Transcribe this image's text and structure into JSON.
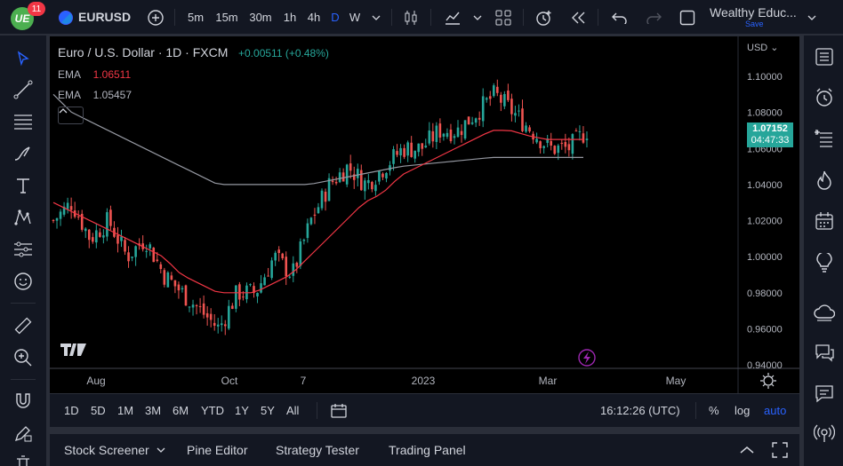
{
  "topbar": {
    "notifications": "11",
    "symbol": "EURUSD",
    "intervals": [
      "5m",
      "15m",
      "30m",
      "1h",
      "4h",
      "D",
      "W"
    ],
    "active_interval": "D",
    "account_name": "Wealthy Educ...",
    "save_label": "Save"
  },
  "chart": {
    "title": "Euro / U.S. Dollar · 1D · FXCM",
    "change": "+0.00511 (+0.48%)",
    "ema1_label": "EMA",
    "ema1_value": "1.06511",
    "ema2_label": "EMA",
    "ema2_value": "1.05457",
    "currency": "USD",
    "last_price": "1.07152",
    "countdown": "04:47:33",
    "colors": {
      "up": "#26a69a",
      "down": "#ef5350",
      "ema_fast": "#f23645",
      "ema_slow": "#b2b5be",
      "price_label": "#26a69a",
      "accent": "#2962ff"
    }
  },
  "chart_data": {
    "type": "candlestick",
    "y_ticks": [
      "1.10000",
      "1.08000",
      "1.06000",
      "1.04000",
      "1.02000",
      "1.00000",
      "0.98000",
      "0.96000",
      "0.94000"
    ],
    "x_ticks": [
      "Aug",
      "Oct",
      "7",
      "2023",
      "Mar",
      "May"
    ],
    "ylim": [
      0.94,
      1.1
    ],
    "series": [
      {
        "name": "EUR/USD",
        "values": [
          1.02,
          1.03,
          1.01,
          1.02,
          1.0,
          1.01,
          0.99,
          0.98,
          0.97,
          0.96,
          0.98,
          0.98,
          1.0,
          0.99,
          1.02,
          1.04,
          1.05,
          1.04,
          1.05,
          1.06,
          1.06,
          1.07,
          1.07,
          1.08,
          1.09,
          1.08,
          1.07,
          1.06,
          1.06,
          1.07
        ]
      },
      {
        "name": "EMA",
        "values": [
          1.03,
          1.025,
          1.02,
          1.015,
          1.01,
          1.005,
          1.0,
          0.99,
          0.985,
          0.98,
          0.98,
          0.98,
          0.985,
          0.99,
          1.0,
          1.01,
          1.02,
          1.03,
          1.035,
          1.045,
          1.05,
          1.055,
          1.06,
          1.065,
          1.07,
          1.07,
          1.067,
          1.065,
          1.065,
          1.065
        ]
      },
      {
        "name": "EMA",
        "values": [
          1.09,
          1.08,
          1.075,
          1.07,
          1.065,
          1.06,
          1.055,
          1.05,
          1.045,
          1.04,
          1.04,
          1.04,
          1.04,
          1.04,
          1.04,
          1.042,
          1.044,
          1.046,
          1.048,
          1.05,
          1.051,
          1.052,
          1.053,
          1.054,
          1.055,
          1.055,
          1.055,
          1.055,
          1.055,
          1.055
        ]
      }
    ]
  },
  "rangebar": {
    "ranges": [
      "1D",
      "5D",
      "1M",
      "3M",
      "6M",
      "YTD",
      "1Y",
      "5Y",
      "All"
    ],
    "time": "16:12:26 (UTC)",
    "percent": "%",
    "log": "log",
    "auto": "auto"
  },
  "bottompanel": {
    "tabs": [
      "Stock Screener",
      "Pine Editor",
      "Strategy Tester",
      "Trading Panel"
    ]
  }
}
